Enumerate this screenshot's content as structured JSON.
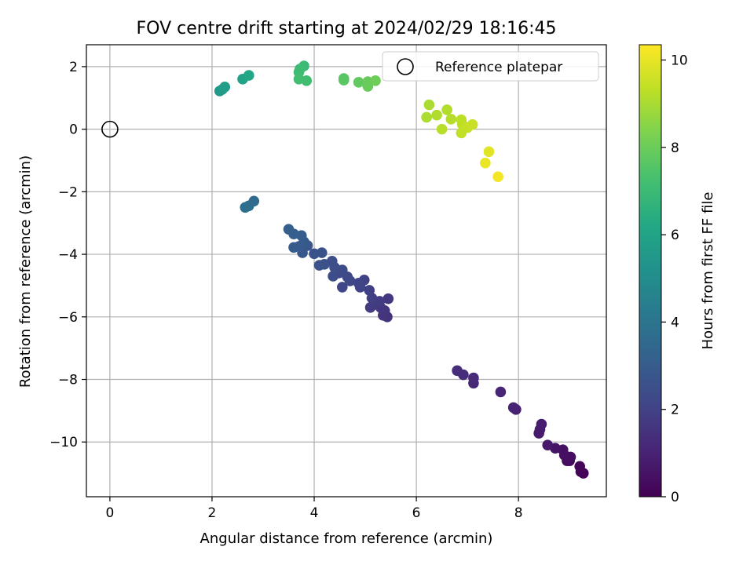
{
  "chart_data": {
    "type": "scatter",
    "title": "FOV centre drift starting at 2024/02/29 18:16:45",
    "xlabel": "Angular distance from reference (arcmin)",
    "ylabel": "Rotation from reference (arcmin)",
    "xlim": [
      -0.46,
      9.72
    ],
    "ylim": [
      -11.75,
      2.7
    ],
    "x_ticks": [
      0,
      2,
      4,
      6,
      8
    ],
    "y_ticks": [
      2,
      0,
      -2,
      -4,
      -6,
      -8,
      -10
    ],
    "x_tick_labels": [
      "0",
      "2",
      "4",
      "6",
      "8"
    ],
    "y_tick_labels": [
      "2",
      "0",
      "−2",
      "−4",
      "−6",
      "−8",
      "−10"
    ],
    "grid": true,
    "colormap": "viridis",
    "colorbar": {
      "label": "Hours from first FF file",
      "range": [
        0,
        10.35
      ],
      "ticks": [
        0,
        2,
        4,
        6,
        8,
        10
      ],
      "tick_labels": [
        "0",
        "2",
        "4",
        "6",
        "8",
        "10"
      ]
    },
    "legend": {
      "position": "top-right",
      "entries": [
        {
          "label": "Reference platepar",
          "marker": "open-circle"
        }
      ]
    },
    "reference_point": [
      0,
      0
    ],
    "points": [
      [
        9.27,
        -11.0,
        0.05
      ],
      [
        9.22,
        -10.95,
        0.1
      ],
      [
        9.2,
        -10.78,
        0.15
      ],
      [
        9.0,
        -10.6,
        0.25
      ],
      [
        8.95,
        -10.6,
        0.3
      ],
      [
        9.02,
        -10.48,
        0.35
      ],
      [
        8.9,
        -10.42,
        0.4
      ],
      [
        8.87,
        -10.25,
        0.45
      ],
      [
        8.72,
        -10.2,
        0.55
      ],
      [
        8.57,
        -10.1,
        0.65
      ],
      [
        8.4,
        -9.72,
        0.75
      ],
      [
        8.42,
        -9.6,
        0.8
      ],
      [
        8.45,
        -9.43,
        0.85
      ],
      [
        7.95,
        -8.96,
        0.95
      ],
      [
        7.9,
        -8.9,
        1.0
      ],
      [
        7.65,
        -8.4,
        1.1
      ],
      [
        7.12,
        -8.12,
        1.2
      ],
      [
        7.12,
        -7.95,
        1.25
      ],
      [
        6.92,
        -7.85,
        1.3
      ],
      [
        6.8,
        -7.72,
        1.35
      ],
      [
        5.43,
        -6.0,
        1.5
      ],
      [
        5.35,
        -5.95,
        1.55
      ],
      [
        5.38,
        -5.8,
        1.6
      ],
      [
        5.3,
        -5.7,
        1.65
      ],
      [
        5.45,
        -5.42,
        1.7
      ],
      [
        5.2,
        -5.6,
        1.75
      ],
      [
        5.1,
        -5.7,
        1.8
      ],
      [
        5.28,
        -5.5,
        1.85
      ],
      [
        5.13,
        -5.4,
        1.9
      ],
      [
        5.08,
        -5.15,
        1.95
      ],
      [
        4.98,
        -4.82,
        2.0
      ],
      [
        4.9,
        -5.05,
        2.05
      ],
      [
        4.87,
        -4.92,
        2.1
      ],
      [
        4.7,
        -4.85,
        2.15
      ],
      [
        4.55,
        -5.05,
        2.2
      ],
      [
        4.65,
        -4.72,
        2.25
      ],
      [
        4.48,
        -4.6,
        2.3
      ],
      [
        4.55,
        -4.5,
        2.35
      ],
      [
        4.37,
        -4.7,
        2.4
      ],
      [
        4.4,
        -4.42,
        2.45
      ],
      [
        4.35,
        -4.22,
        2.5
      ],
      [
        4.2,
        -4.32,
        2.55
      ],
      [
        4.1,
        -4.35,
        2.6
      ],
      [
        4.15,
        -3.95,
        2.65
      ],
      [
        4.0,
        -3.98,
        2.7
      ],
      [
        3.87,
        -3.72,
        2.8
      ],
      [
        3.77,
        -3.95,
        2.85
      ],
      [
        3.8,
        -3.6,
        2.9
      ],
      [
        3.7,
        -3.75,
        2.95
      ],
      [
        3.6,
        -3.78,
        3.0
      ],
      [
        3.75,
        -3.4,
        3.05
      ],
      [
        3.6,
        -3.35,
        3.1
      ],
      [
        3.5,
        -3.2,
        3.15
      ],
      [
        2.82,
        -2.3,
        3.6
      ],
      [
        2.72,
        -2.45,
        3.7
      ],
      [
        2.65,
        -2.5,
        3.75
      ],
      [
        2.15,
        1.22,
        5.5
      ],
      [
        2.2,
        1.27,
        5.6
      ],
      [
        2.25,
        1.35,
        5.7
      ],
      [
        2.6,
        1.6,
        5.95
      ],
      [
        2.72,
        1.72,
        6.1
      ],
      [
        3.8,
        2.02,
        7.0
      ],
      [
        3.72,
        1.92,
        7.05
      ],
      [
        3.7,
        1.82,
        7.1
      ],
      [
        3.85,
        1.55,
        7.15
      ],
      [
        3.7,
        1.6,
        7.2
      ],
      [
        4.58,
        1.62,
        7.6
      ],
      [
        4.58,
        1.57,
        7.65
      ],
      [
        4.87,
        1.5,
        7.8
      ],
      [
        5.05,
        1.52,
        7.9
      ],
      [
        5.05,
        1.37,
        7.95
      ],
      [
        5.2,
        1.55,
        8.05
      ],
      [
        6.25,
        0.78,
        9.0
      ],
      [
        6.2,
        0.38,
        9.05
      ],
      [
        6.4,
        0.45,
        9.1
      ],
      [
        6.6,
        0.62,
        9.15
      ],
      [
        6.68,
        0.32,
        9.2
      ],
      [
        6.5,
        0.0,
        9.25
      ],
      [
        6.88,
        0.3,
        9.3
      ],
      [
        6.9,
        0.15,
        9.35
      ],
      [
        6.88,
        -0.12,
        9.4
      ],
      [
        7.0,
        0.05,
        9.45
      ],
      [
        7.1,
        0.15,
        9.5
      ],
      [
        7.42,
        -0.72,
        9.9
      ],
      [
        7.35,
        -1.08,
        10.05
      ],
      [
        7.6,
        -1.52,
        10.2
      ]
    ]
  }
}
